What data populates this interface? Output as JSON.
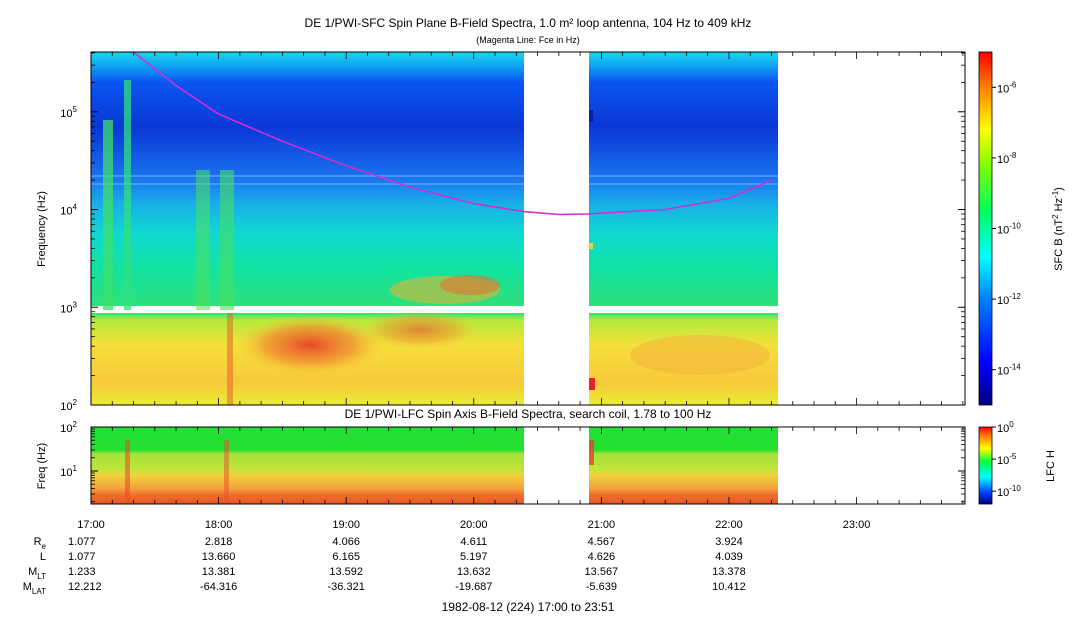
{
  "chart_data": [
    {
      "type": "heatmap",
      "title": "DE 1/PWI-SFC  Spin Plane B-Field Spectra, 1.0 m² loop antenna, 104 Hz to 409 kHz",
      "subtitle": "(Magenta Line: Fce in Hz)",
      "ylabel": "Frequency (Hz)",
      "yscale": "log",
      "ylim": [
        100,
        409000
      ],
      "yticks": [
        {
          "value": 100,
          "label": "10",
          "sup": "2"
        },
        {
          "value": 1000,
          "label": "10",
          "sup": "3"
        },
        {
          "value": 10000,
          "label": "10",
          "sup": "4"
        },
        {
          "value": 100000,
          "label": "10",
          "sup": "5"
        }
      ],
      "xlim": [
        "17:00",
        "23:51"
      ],
      "data_coverage": [
        [
          "17:00",
          "20:24"
        ],
        [
          "20:53",
          "22:24"
        ]
      ],
      "colorbar": {
        "label": "SFC B (nT",
        "label_sup1": "2",
        "label_mid": " Hz",
        "label_sup2": "-1",
        "label_end": ")",
        "scale": "log",
        "range": [
          1e-15,
          1e-05
        ],
        "ticks": [
          {
            "value": 1e-06,
            "label": "10",
            "sup": "-6"
          },
          {
            "value": 1e-08,
            "label": "10",
            "sup": "-8"
          },
          {
            "value": 1e-10,
            "label": "10",
            "sup": "-10"
          },
          {
            "value": 1e-12,
            "label": "10",
            "sup": "-12"
          },
          {
            "value": 1e-14,
            "label": "10",
            "sup": "-14"
          }
        ]
      },
      "overlay": {
        "name": "Fce",
        "color": "#d02fd0",
        "points": [
          {
            "t": "17:20",
            "f": 409000
          },
          {
            "t": "17:40",
            "f": 185000
          },
          {
            "t": "18:00",
            "f": 95000
          },
          {
            "t": "18:30",
            "f": 50000
          },
          {
            "t": "19:00",
            "f": 28000
          },
          {
            "t": "19:30",
            "f": 17000
          },
          {
            "t": "20:00",
            "f": 11500
          },
          {
            "t": "20:24",
            "f": 9500
          },
          {
            "t": "20:40",
            "f": 8900
          },
          {
            "t": "20:53",
            "f": 9000
          },
          {
            "t": "21:30",
            "f": 10000
          },
          {
            "t": "22:00",
            "f": 13000
          },
          {
            "t": "22:20",
            "f": 20000
          }
        ]
      },
      "colors": {
        "high": "#ff2000",
        "mid": "#00e07a",
        "low": "#001a8c"
      }
    },
    {
      "type": "heatmap",
      "title": "DE 1/PWI-LFC  Spin Axis B-Field Spectra, search coil, 1.78 to 100 Hz",
      "ylabel": "Freq (Hz)",
      "yscale": "log",
      "ylim": [
        1.78,
        100
      ],
      "yticks": [
        {
          "value": 10,
          "label": "10",
          "sup": "1"
        },
        {
          "value": 100,
          "label": "10",
          "sup": "2"
        }
      ],
      "data_coverage": [
        [
          "17:00",
          "20:24"
        ],
        [
          "20:53",
          "22:24"
        ]
      ],
      "colorbar": {
        "label": "LFC H",
        "scale": "log",
        "range": [
          1e-12,
          1
        ],
        "ticks": [
          {
            "value": 1,
            "label": "10",
            "sup": "0"
          },
          {
            "value": 1e-05,
            "label": "10",
            "sup": "-5"
          },
          {
            "value": 1e-10,
            "label": "10",
            "sup": "-10"
          }
        ]
      }
    }
  ],
  "time_axis": {
    "ticks": [
      "17:00",
      "18:00",
      "19:00",
      "20:00",
      "21:00",
      "22:00",
      "23:00"
    ]
  },
  "ephemeris": {
    "rows": [
      {
        "label": "R",
        "sub": "e",
        "values": [
          "1.077",
          "2.818",
          "4.066",
          "4.611",
          "4.567",
          "3.924"
        ]
      },
      {
        "label": "L",
        "sub": "",
        "values": [
          "1.077",
          "13.660",
          "6.165",
          "5.197",
          "4.626",
          "4.039"
        ]
      },
      {
        "label": "M",
        "sub": "LT",
        "values": [
          "1.233",
          "13.381",
          "13.592",
          "13.632",
          "13.567",
          "13.378"
        ]
      },
      {
        "label": "M",
        "sub": "LAT",
        "values": [
          "12.212",
          "-64.316",
          "-36.321",
          "-19.687",
          "-5.639",
          "10.412"
        ]
      }
    ]
  },
  "footer": "1982-08-12 (224) 17:00 to 23:51"
}
